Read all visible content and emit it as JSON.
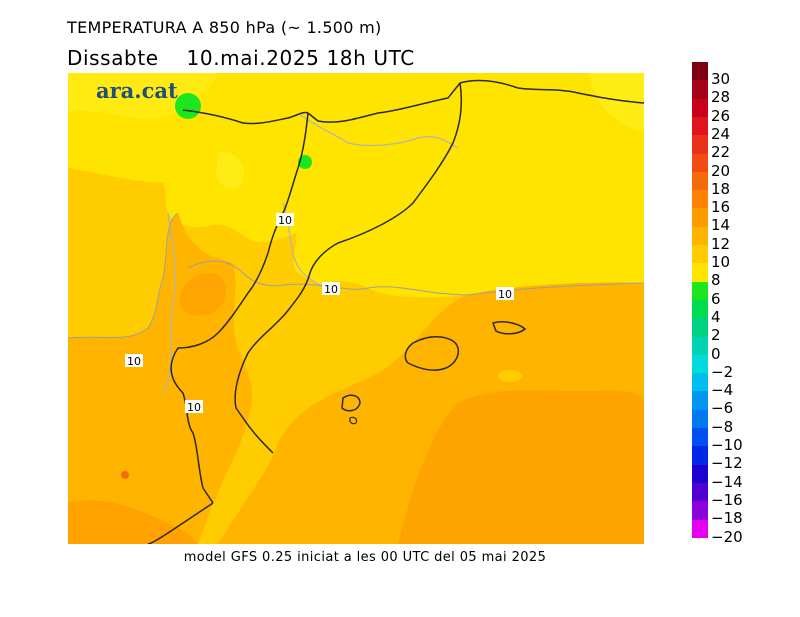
{
  "header": {
    "title": "TEMPERATURA A 850 hPa (~ 1.500 m)",
    "day": "Dissabte",
    "datetime": "10.mai.2025 18h UTC"
  },
  "logo": {
    "text": "ara.cat"
  },
  "footer": {
    "caption": "model GFS 0.25 iniciat a les 00 UTC del 05 mai 2025"
  },
  "map": {
    "contour_labels": [
      "10",
      "10",
      "10",
      "10",
      "10"
    ],
    "fill_colors": {
      "band_6_8": "#ffe400",
      "band_8_10": "#ffcc00",
      "band_10_12": "#ffb400",
      "band_12_14": "#ffa000",
      "band_4_6": "#1ee61e"
    }
  },
  "legend": {
    "labels": [
      "30",
      "28",
      "26",
      "24",
      "22",
      "20",
      "18",
      "16",
      "14",
      "12",
      "10",
      "8",
      "6",
      "4",
      "2",
      "0",
      "-2",
      "-4",
      "-6",
      "-8",
      "-10",
      "-12",
      "-14",
      "-16",
      "-18",
      "-20"
    ],
    "colors": [
      "#7f0010",
      "#a40018",
      "#c8001a",
      "#e0141a",
      "#e8321a",
      "#f04c14",
      "#f56a0a",
      "#ff8200",
      "#ff9a00",
      "#ffb400",
      "#ffcc00",
      "#ffe400",
      "#1ee61e",
      "#00dc50",
      "#00d282",
      "#00d2b4",
      "#00dcdc",
      "#00bef0",
      "#0096f0",
      "#0078f0",
      "#0050f0",
      "#0028e6",
      "#1e00d2",
      "#5000d2",
      "#8c00dc",
      "#e600f0"
    ]
  }
}
